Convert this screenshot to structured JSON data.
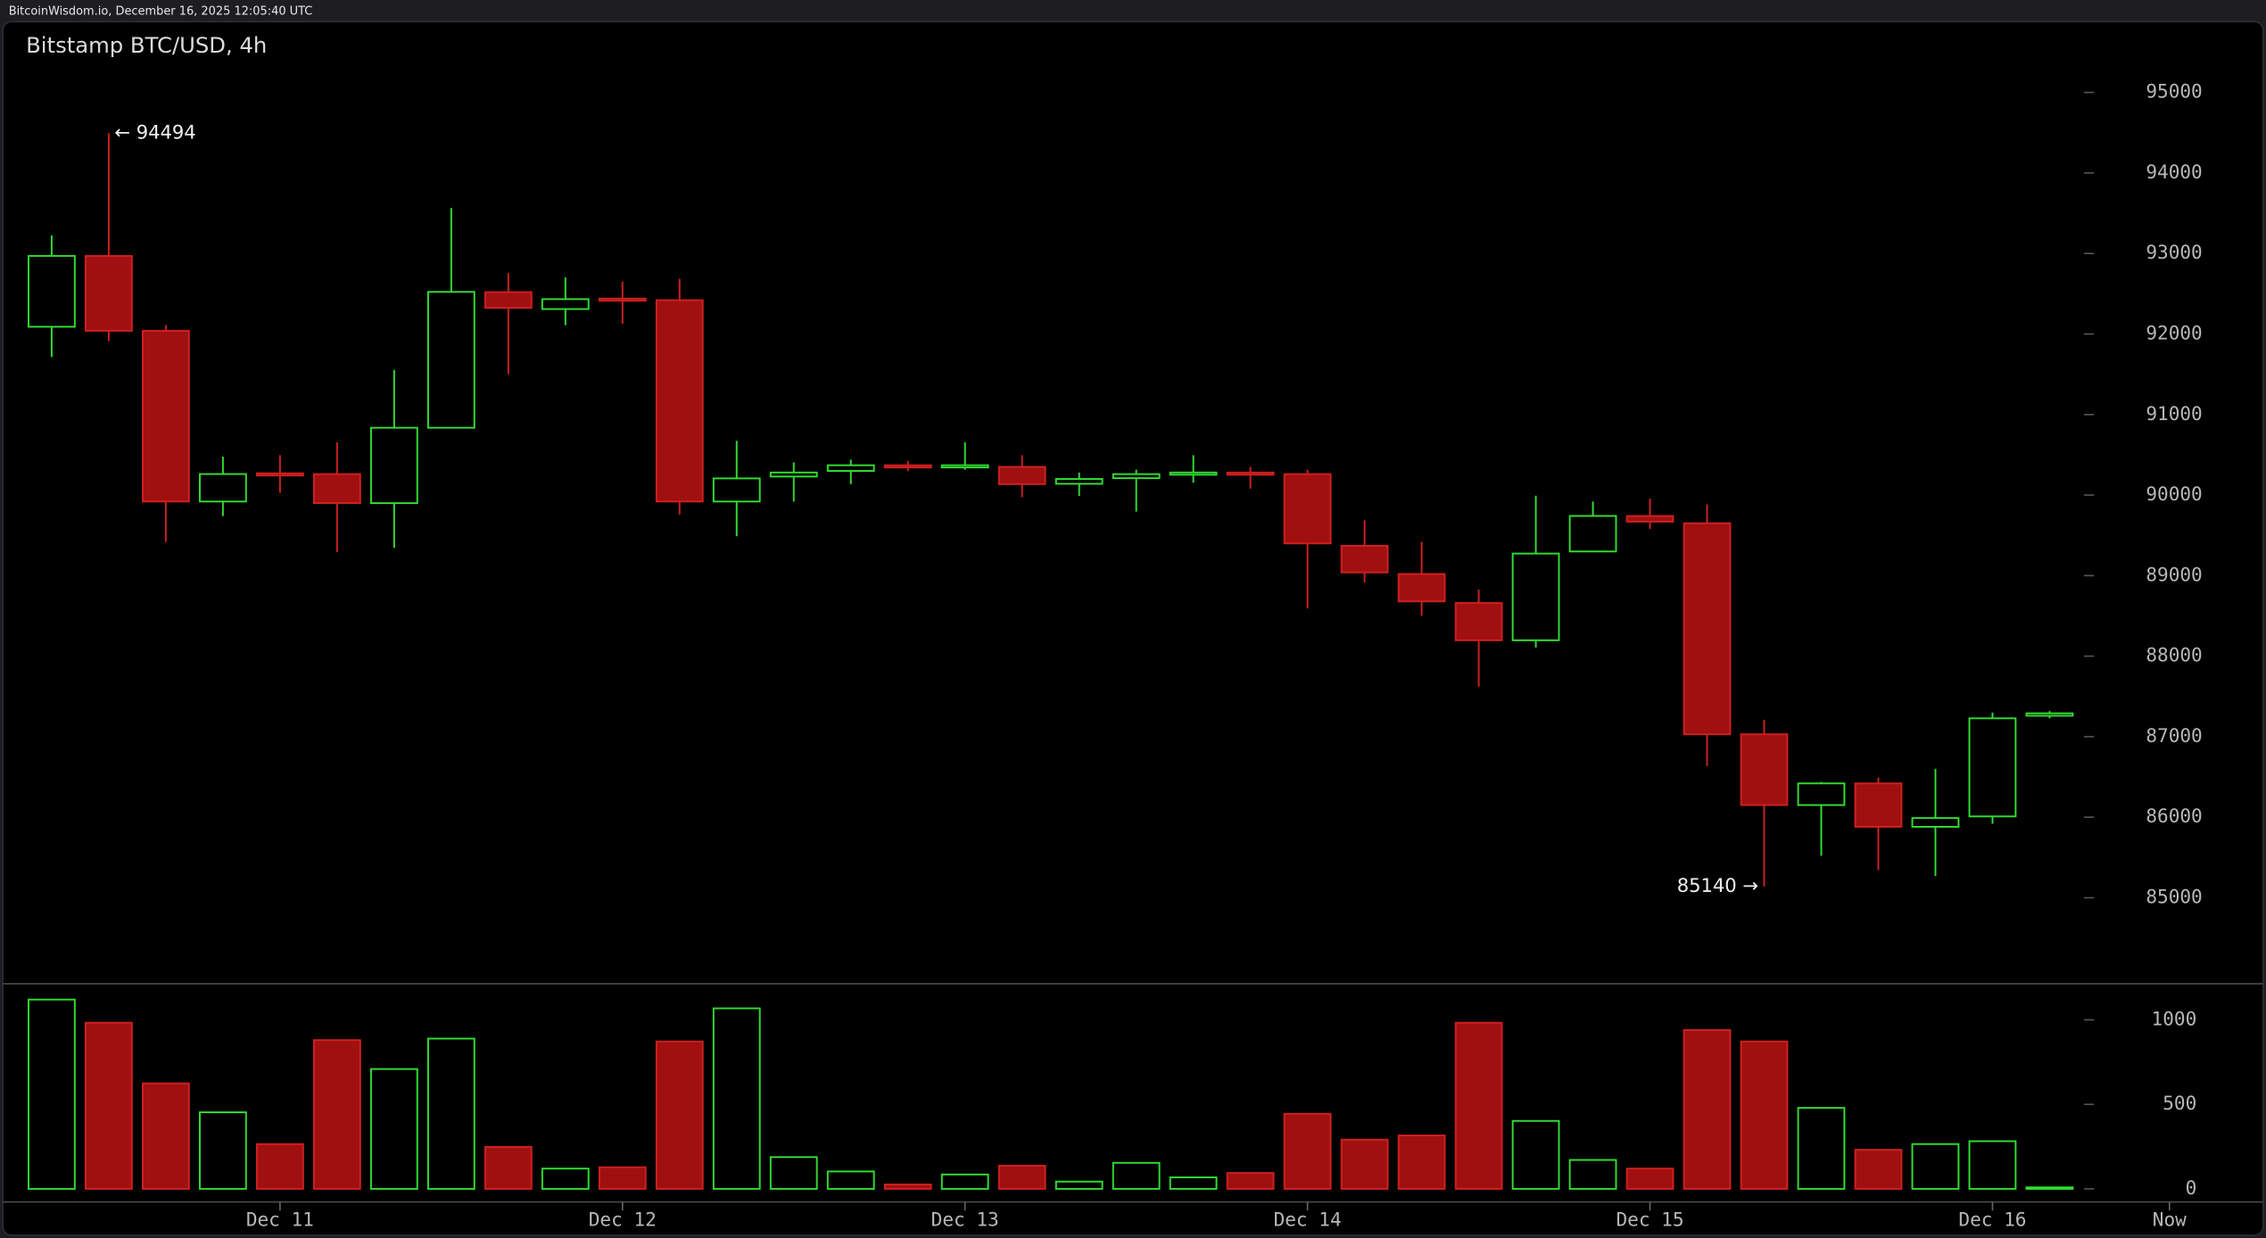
{
  "header": "BitcoinWisdom.io, December 16, 2025 12:05:40 UTC",
  "chart_data": [
    {
      "type": "candlestick",
      "title": "Bitstamp BTC/USD, 4h",
      "x": [
        0,
        1,
        2,
        3,
        4,
        5,
        6,
        7,
        8,
        9,
        10,
        11,
        12,
        13,
        14,
        15,
        16,
        17,
        18,
        19,
        20,
        21,
        22,
        23,
        24,
        25,
        26,
        27,
        28,
        29,
        30,
        31,
        32,
        33,
        34,
        35
      ],
      "open": [
        92090,
        92970,
        92040,
        89920,
        90270,
        90260,
        89900,
        90836,
        92520,
        92310,
        92440,
        92420,
        89920,
        90230,
        90300,
        90370,
        90350,
        90350,
        90140,
        90210,
        90260,
        90280,
        90260,
        89370,
        89020,
        88660,
        88197,
        89300,
        89740,
        89650,
        87030,
        86151,
        86420,
        85881,
        86010,
        87260
      ],
      "high": [
        93223,
        94494,
        92110,
        90477,
        90495,
        90656,
        91554,
        93564,
        92756,
        92702,
        92650,
        92685,
        90674,
        90405,
        90440,
        90423,
        90656,
        90495,
        90280,
        90315,
        90495,
        90351,
        90315,
        89687,
        89418,
        88825,
        89992,
        89920,
        89956,
        89884,
        87210,
        86438,
        86492,
        86599,
        87300,
        87318
      ],
      "low": [
        91715,
        91913,
        89418,
        89741,
        90028,
        89292,
        89346,
        90836,
        91500,
        92110,
        92128,
        89759,
        89489,
        89920,
        90136,
        90297,
        90315,
        89974,
        89990,
        89795,
        90153,
        90080,
        88592,
        88915,
        88502,
        87622,
        88107,
        89292,
        89579,
        86635,
        85140,
        85522,
        85343,
        85271,
        85918,
        87228
      ],
      "close": [
        92970,
        92040,
        89920,
        90261,
        90260,
        89900,
        90836,
        92523,
        92325,
        92433,
        92430,
        89920,
        90207,
        90280,
        90370,
        90350,
        90370,
        90136,
        90200,
        90260,
        90280,
        90260,
        89400,
        89040,
        88680,
        88197,
        89274,
        89741,
        89670,
        87030,
        86151,
        86420,
        85881,
        85990,
        87228,
        87290
      ],
      "up_color": "#33dd33",
      "down_color": "#a01010",
      "down_edge": "#d02020",
      "xlim": [
        -0.5,
        37.8
      ],
      "xticks": [
        {
          "value": 4,
          "label": "Dec 11"
        },
        {
          "value": 10,
          "label": "Dec 12"
        },
        {
          "value": 16,
          "label": "Dec 13"
        },
        {
          "value": 22,
          "label": "Dec 14"
        },
        {
          "value": 28,
          "label": "Dec 15"
        },
        {
          "value": 34,
          "label": "Dec 16"
        },
        {
          "value": 37.1,
          "label": "Now"
        }
      ],
      "ylim": [
        83950,
        95430
      ],
      "yticks": [
        85000,
        86000,
        87000,
        88000,
        89000,
        90000,
        91000,
        92000,
        93000,
        94000,
        95000
      ],
      "annotations": [
        {
          "text": "← 94494"
        },
        {
          "text": "85140 →"
        }
      ]
    },
    {
      "type": "bar",
      "title": null,
      "values": [
        1120,
        983,
        624,
        453,
        265,
        880,
        709,
        889,
        248,
        120,
        128,
        872,
        1068,
        188,
        103,
        26,
        85,
        137,
        43,
        154,
        68,
        94,
        444,
        291,
        316,
        983,
        402,
        171,
        120,
        940,
        872,
        479,
        231,
        265,
        282,
        9
      ],
      "ylim": [
        -77,
        1205
      ],
      "yticks": [
        0,
        500,
        1000
      ]
    }
  ]
}
